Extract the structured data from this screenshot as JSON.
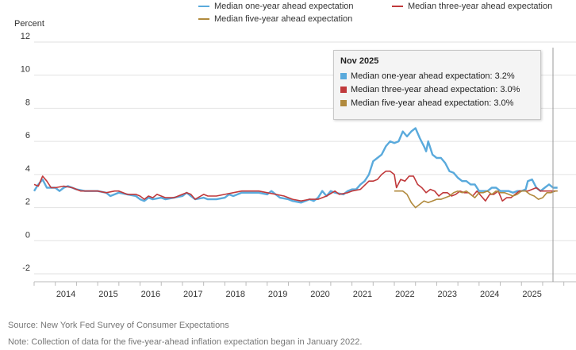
{
  "chart_data": {
    "type": "line",
    "ylabel": "Percent",
    "ylim": [
      -2,
      12
    ],
    "yticks": [
      12,
      10,
      8,
      6,
      4,
      2,
      0,
      -2
    ],
    "x_range": [
      2013.5,
      2025.95
    ],
    "xticks": [
      "2014",
      "2015",
      "2016",
      "2017",
      "2018",
      "2019",
      "2020",
      "2021",
      "2022",
      "2023",
      "2024",
      "2025"
    ],
    "series": [
      {
        "name": "Median one-year ahead expectation",
        "color": "#5aaadc",
        "points": [
          [
            2013.5,
            3.0
          ],
          [
            2013.6,
            3.4
          ],
          [
            2013.7,
            3.7
          ],
          [
            2013.8,
            3.2
          ],
          [
            2014.0,
            3.2
          ],
          [
            2014.1,
            3.0
          ],
          [
            2014.2,
            3.2
          ],
          [
            2014.3,
            3.3
          ],
          [
            2014.5,
            3.1
          ],
          [
            2014.7,
            3.0
          ],
          [
            2015.0,
            3.0
          ],
          [
            2015.2,
            2.9
          ],
          [
            2015.3,
            2.7
          ],
          [
            2015.5,
            2.9
          ],
          [
            2015.7,
            2.8
          ],
          [
            2015.9,
            2.7
          ],
          [
            2016.0,
            2.5
          ],
          [
            2016.1,
            2.4
          ],
          [
            2016.2,
            2.6
          ],
          [
            2016.3,
            2.5
          ],
          [
            2016.5,
            2.6
          ],
          [
            2016.6,
            2.5
          ],
          [
            2016.8,
            2.6
          ],
          [
            2017.0,
            2.7
          ],
          [
            2017.1,
            2.9
          ],
          [
            2017.2,
            2.7
          ],
          [
            2017.3,
            2.5
          ],
          [
            2017.5,
            2.6
          ],
          [
            2017.6,
            2.5
          ],
          [
            2017.8,
            2.5
          ],
          [
            2018.0,
            2.6
          ],
          [
            2018.1,
            2.8
          ],
          [
            2018.2,
            2.7
          ],
          [
            2018.4,
            2.9
          ],
          [
            2018.6,
            2.9
          ],
          [
            2018.8,
            2.9
          ],
          [
            2019.0,
            2.8
          ],
          [
            2019.1,
            3.0
          ],
          [
            2019.2,
            2.8
          ],
          [
            2019.3,
            2.6
          ],
          [
            2019.5,
            2.5
          ],
          [
            2019.6,
            2.4
          ],
          [
            2019.8,
            2.3
          ],
          [
            2019.9,
            2.4
          ],
          [
            2020.0,
            2.5
          ],
          [
            2020.1,
            2.4
          ],
          [
            2020.2,
            2.6
          ],
          [
            2020.3,
            3.0
          ],
          [
            2020.4,
            2.7
          ],
          [
            2020.5,
            3.0
          ],
          [
            2020.6,
            2.9
          ],
          [
            2020.8,
            2.8
          ],
          [
            2020.9,
            3.0
          ],
          [
            2021.0,
            3.1
          ],
          [
            2021.1,
            3.1
          ],
          [
            2021.2,
            3.4
          ],
          [
            2021.3,
            3.6
          ],
          [
            2021.4,
            4.0
          ],
          [
            2021.5,
            4.8
          ],
          [
            2021.6,
            5.0
          ],
          [
            2021.7,
            5.2
          ],
          [
            2021.8,
            5.7
          ],
          [
            2021.9,
            6.0
          ],
          [
            2022.0,
            5.9
          ],
          [
            2022.1,
            6.0
          ],
          [
            2022.2,
            6.6
          ],
          [
            2022.3,
            6.3
          ],
          [
            2022.4,
            6.6
          ],
          [
            2022.5,
            6.8
          ],
          [
            2022.6,
            6.2
          ],
          [
            2022.7,
            5.7
          ],
          [
            2022.75,
            5.4
          ],
          [
            2022.8,
            6.0
          ],
          [
            2022.9,
            5.2
          ],
          [
            2023.0,
            5.0
          ],
          [
            2023.1,
            5.0
          ],
          [
            2023.2,
            4.7
          ],
          [
            2023.3,
            4.2
          ],
          [
            2023.4,
            4.1
          ],
          [
            2023.5,
            3.8
          ],
          [
            2023.6,
            3.6
          ],
          [
            2023.7,
            3.6
          ],
          [
            2023.8,
            3.4
          ],
          [
            2023.9,
            3.4
          ],
          [
            2024.0,
            3.0
          ],
          [
            2024.1,
            3.0
          ],
          [
            2024.2,
            3.0
          ],
          [
            2024.3,
            3.2
          ],
          [
            2024.4,
            3.2
          ],
          [
            2024.5,
            3.0
          ],
          [
            2024.6,
            3.0
          ],
          [
            2024.7,
            3.0
          ],
          [
            2024.8,
            2.9
          ],
          [
            2024.9,
            3.0
          ],
          [
            2025.0,
            3.0
          ],
          [
            2025.1,
            3.1
          ],
          [
            2025.15,
            3.6
          ],
          [
            2025.25,
            3.7
          ],
          [
            2025.35,
            3.2
          ],
          [
            2025.45,
            3.0
          ],
          [
            2025.55,
            3.2
          ],
          [
            2025.65,
            3.4
          ],
          [
            2025.75,
            3.2
          ],
          [
            2025.85,
            3.2
          ]
        ]
      },
      {
        "name": "Median three-year ahead expectation",
        "color": "#c0393b",
        "points": [
          [
            2013.5,
            3.4
          ],
          [
            2013.6,
            3.3
          ],
          [
            2013.7,
            3.9
          ],
          [
            2013.8,
            3.6
          ],
          [
            2013.9,
            3.2
          ],
          [
            2014.0,
            3.2
          ],
          [
            2014.2,
            3.3
          ],
          [
            2014.4,
            3.2
          ],
          [
            2014.6,
            3.0
          ],
          [
            2014.8,
            3.0
          ],
          [
            2015.0,
            3.0
          ],
          [
            2015.2,
            2.9
          ],
          [
            2015.4,
            3.0
          ],
          [
            2015.5,
            3.0
          ],
          [
            2015.7,
            2.8
          ],
          [
            2015.9,
            2.8
          ],
          [
            2016.0,
            2.7
          ],
          [
            2016.1,
            2.5
          ],
          [
            2016.2,
            2.7
          ],
          [
            2016.3,
            2.6
          ],
          [
            2016.4,
            2.8
          ],
          [
            2016.5,
            2.7
          ],
          [
            2016.6,
            2.6
          ],
          [
            2016.8,
            2.6
          ],
          [
            2017.0,
            2.8
          ],
          [
            2017.1,
            2.9
          ],
          [
            2017.2,
            2.8
          ],
          [
            2017.3,
            2.5
          ],
          [
            2017.5,
            2.8
          ],
          [
            2017.6,
            2.7
          ],
          [
            2017.8,
            2.7
          ],
          [
            2018.0,
            2.8
          ],
          [
            2018.2,
            2.9
          ],
          [
            2018.4,
            3.0
          ],
          [
            2018.6,
            3.0
          ],
          [
            2018.8,
            3.0
          ],
          [
            2019.0,
            2.9
          ],
          [
            2019.2,
            2.8
          ],
          [
            2019.4,
            2.7
          ],
          [
            2019.6,
            2.5
          ],
          [
            2019.8,
            2.4
          ],
          [
            2020.0,
            2.5
          ],
          [
            2020.2,
            2.5
          ],
          [
            2020.4,
            2.7
          ],
          [
            2020.6,
            3.0
          ],
          [
            2020.7,
            2.8
          ],
          [
            2020.9,
            2.9
          ],
          [
            2021.0,
            3.0
          ],
          [
            2021.2,
            3.1
          ],
          [
            2021.4,
            3.6
          ],
          [
            2021.5,
            3.6
          ],
          [
            2021.6,
            3.7
          ],
          [
            2021.7,
            4.0
          ],
          [
            2021.8,
            4.2
          ],
          [
            2021.9,
            4.2
          ],
          [
            2022.0,
            4.0
          ],
          [
            2022.05,
            3.2
          ],
          [
            2022.15,
            3.7
          ],
          [
            2022.25,
            3.6
          ],
          [
            2022.35,
            3.9
          ],
          [
            2022.45,
            3.9
          ],
          [
            2022.55,
            3.4
          ],
          [
            2022.65,
            3.2
          ],
          [
            2022.75,
            2.9
          ],
          [
            2022.85,
            3.1
          ],
          [
            2022.95,
            3.0
          ],
          [
            2023.05,
            2.7
          ],
          [
            2023.15,
            2.9
          ],
          [
            2023.25,
            2.9
          ],
          [
            2023.35,
            2.7
          ],
          [
            2023.45,
            2.8
          ],
          [
            2023.55,
            3.0
          ],
          [
            2023.65,
            2.9
          ],
          [
            2023.75,
            2.9
          ],
          [
            2023.85,
            2.7
          ],
          [
            2023.95,
            3.0
          ],
          [
            2024.05,
            2.7
          ],
          [
            2024.15,
            2.4
          ],
          [
            2024.25,
            2.8
          ],
          [
            2024.35,
            2.8
          ],
          [
            2024.45,
            3.0
          ],
          [
            2024.55,
            2.4
          ],
          [
            2024.65,
            2.6
          ],
          [
            2024.75,
            2.6
          ],
          [
            2024.85,
            2.8
          ],
          [
            2024.95,
            3.0
          ],
          [
            2025.05,
            3.0
          ],
          [
            2025.15,
            3.0
          ],
          [
            2025.25,
            3.1
          ],
          [
            2025.35,
            3.2
          ],
          [
            2025.45,
            3.0
          ],
          [
            2025.55,
            3.0
          ],
          [
            2025.65,
            3.0
          ],
          [
            2025.75,
            3.0
          ],
          [
            2025.85,
            3.0
          ]
        ]
      },
      {
        "name": "Median five-year ahead expectation",
        "color": "#b18a3d",
        "points": [
          [
            2022.0,
            3.0
          ],
          [
            2022.1,
            3.0
          ],
          [
            2022.2,
            3.0
          ],
          [
            2022.3,
            2.8
          ],
          [
            2022.4,
            2.3
          ],
          [
            2022.5,
            2.0
          ],
          [
            2022.6,
            2.2
          ],
          [
            2022.7,
            2.4
          ],
          [
            2022.8,
            2.3
          ],
          [
            2022.9,
            2.4
          ],
          [
            2023.0,
            2.5
          ],
          [
            2023.1,
            2.5
          ],
          [
            2023.2,
            2.6
          ],
          [
            2023.3,
            2.7
          ],
          [
            2023.4,
            2.9
          ],
          [
            2023.5,
            3.0
          ],
          [
            2023.6,
            2.9
          ],
          [
            2023.7,
            3.0
          ],
          [
            2023.8,
            2.8
          ],
          [
            2023.9,
            2.6
          ],
          [
            2024.0,
            2.9
          ],
          [
            2024.1,
            2.9
          ],
          [
            2024.2,
            3.0
          ],
          [
            2024.3,
            2.8
          ],
          [
            2024.4,
            3.0
          ],
          [
            2024.5,
            2.9
          ],
          [
            2024.6,
            2.9
          ],
          [
            2024.7,
            2.8
          ],
          [
            2024.8,
            2.7
          ],
          [
            2024.9,
            2.8
          ],
          [
            2025.0,
            3.0
          ],
          [
            2025.1,
            3.0
          ],
          [
            2025.2,
            2.8
          ],
          [
            2025.3,
            2.7
          ],
          [
            2025.4,
            2.5
          ],
          [
            2025.5,
            2.6
          ],
          [
            2025.6,
            2.9
          ],
          [
            2025.7,
            2.9
          ],
          [
            2025.8,
            3.0
          ],
          [
            2025.85,
            3.0
          ]
        ]
      }
    ],
    "tooltip": {
      "title": "Nov 2025",
      "rows": [
        "Median one-year ahead expectation: 3.2%",
        "Median three-year ahead expectation: 3.0%",
        "Median five-year ahead expectation: 3.0%"
      ]
    }
  },
  "legend": {
    "one_year": "Median one-year ahead expectation",
    "three_year": "Median three-year ahead expectation",
    "five_year": "Median five-year ahead expectation"
  },
  "colors": {
    "one_year": "#5aaadc",
    "three_year": "#c0393b",
    "five_year": "#b18a3d"
  },
  "footer": {
    "source": "Source: New York Fed Survey of Consumer Expectations",
    "note": "Note: Collection of data for the five-year-ahead inflation expectation began in January 2022."
  }
}
